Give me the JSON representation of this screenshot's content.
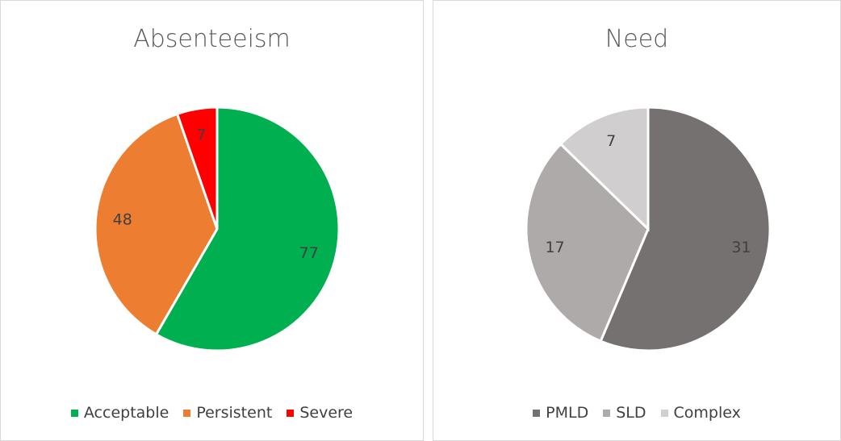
{
  "chart_data": [
    {
      "type": "pie",
      "title": "Absenteeism",
      "categories": [
        "Acceptable",
        "Persistent",
        "Severe"
      ],
      "values": [
        77,
        48,
        7
      ],
      "colors": [
        "#00b050",
        "#ed7d31",
        "#ff0000"
      ]
    },
    {
      "type": "pie",
      "title": "Need",
      "categories": [
        "PMLD",
        "SLD",
        "Complex"
      ],
      "values": [
        31,
        17,
        7
      ],
      "colors": [
        "#767171",
        "#aeaaaa",
        "#d0cece"
      ]
    }
  ]
}
